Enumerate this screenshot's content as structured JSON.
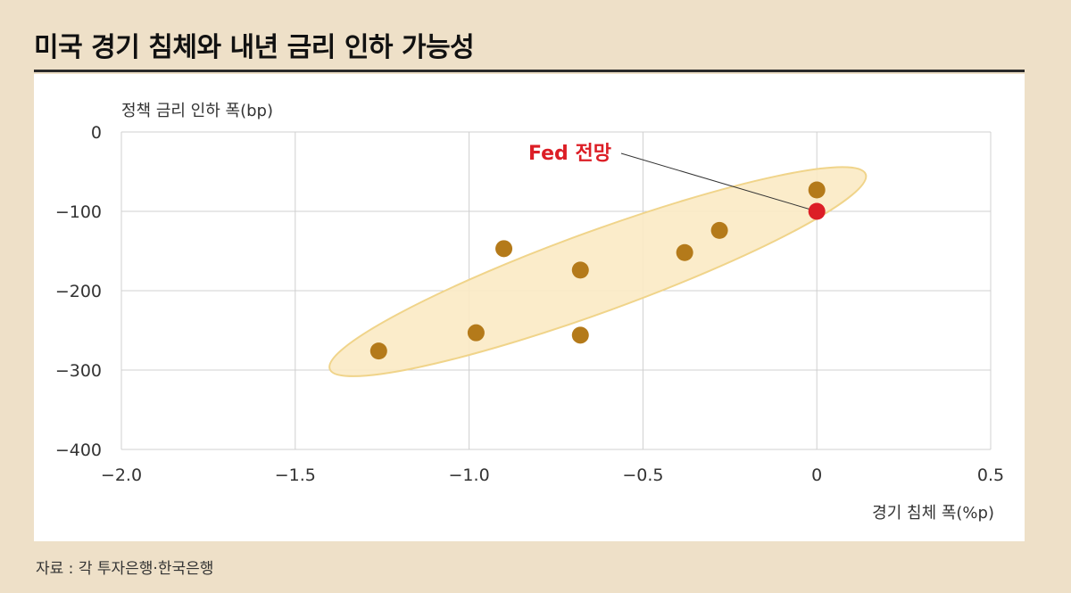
{
  "header": {
    "title": "미국 경기 침체와 내년 금리 인하 가능성"
  },
  "footer": {
    "source": "자료 : 각 투자은행·한국은행"
  },
  "colors": {
    "background": "#eee0c8",
    "panel": "#ffffff",
    "point": "#b47a1a",
    "highlight": "#dc1e26",
    "ellipse_fill": "#fbeac4",
    "ellipse_stroke": "#f0d48a",
    "grid": "#d0d0d0"
  },
  "chart_data": {
    "type": "scatter",
    "title": "미국 경기 침체와 내년 금리 인하 가능성",
    "xlabel": "경기 침체 폭(%p)",
    "ylabel": "정책 금리 인하 폭(bp)",
    "xlim": [
      -2.0,
      0.5
    ],
    "ylim": [
      -400,
      0
    ],
    "xticks": [
      -2.0,
      -1.5,
      -1.0,
      -0.5,
      0,
      0.5
    ],
    "xtick_labels": [
      "−2.0",
      "−1.5",
      "−1.0",
      "−0.5",
      "0",
      "0.5"
    ],
    "yticks": [
      0,
      -100,
      -200,
      -300,
      -400
    ],
    "ytick_labels": [
      "0",
      "−100",
      "−200",
      "−300",
      "−400"
    ],
    "grid": true,
    "series": [
      {
        "name": "각 투자은행",
        "points": [
          {
            "x": 0.0,
            "y": -73
          },
          {
            "x": -0.28,
            "y": -124
          },
          {
            "x": -0.38,
            "y": -152
          },
          {
            "x": -0.68,
            "y": -174
          },
          {
            "x": -0.9,
            "y": -147
          },
          {
            "x": -0.98,
            "y": -253
          },
          {
            "x": -0.68,
            "y": -256
          },
          {
            "x": -1.26,
            "y": -276
          }
        ]
      },
      {
        "name": "Fed 전망",
        "points": [
          {
            "x": 0.0,
            "y": -100
          }
        ]
      }
    ],
    "annotations": [
      {
        "text": "Fed 전망",
        "target": {
          "x": 0.0,
          "y": -100
        }
      }
    ],
    "highlight_region": {
      "shape": "ellipse",
      "center": {
        "x": -0.63,
        "y": -176
      },
      "semi_axis_x": 0.82,
      "semi_axis_y": 82,
      "rotation_deg": -20
    }
  }
}
